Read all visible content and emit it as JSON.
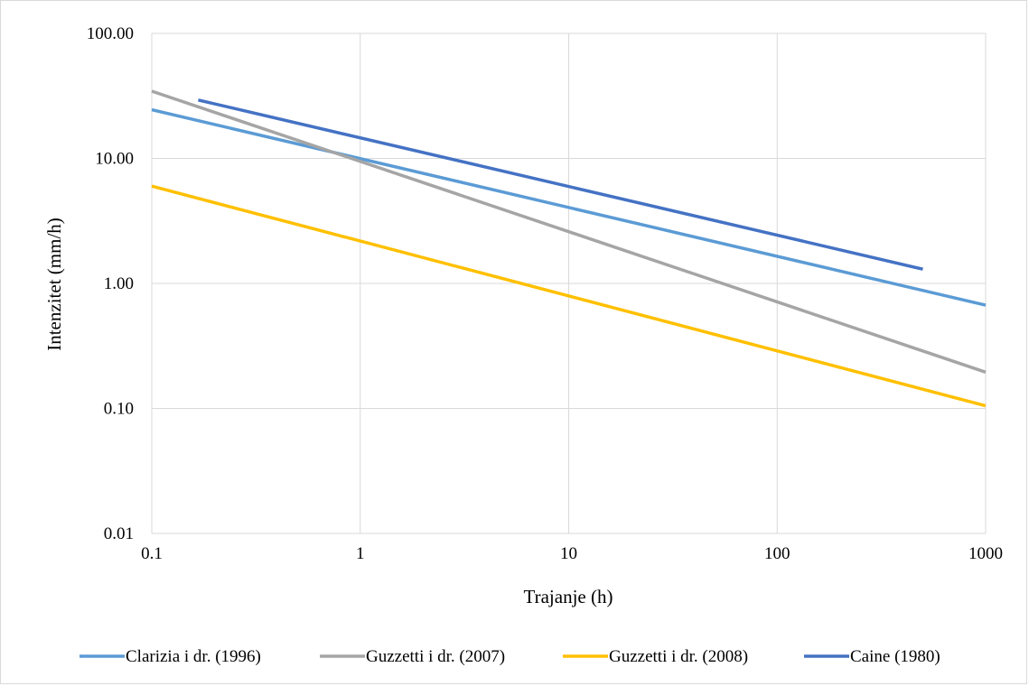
{
  "chart_data": {
    "type": "line",
    "title": "",
    "xlabel": "Trajanje (h)",
    "ylabel": "Intenzitet (mm/h)",
    "x_scale": "log",
    "y_scale": "log",
    "xlim": [
      0.1,
      1000
    ],
    "ylim": [
      0.01,
      100
    ],
    "x_ticks": [
      "0.1",
      "1",
      "10",
      "100",
      "1000"
    ],
    "y_ticks": [
      "100.00",
      "10.00",
      "1.00",
      "0.10",
      "0.01"
    ],
    "grid": true,
    "legend_position": "bottom",
    "series": [
      {
        "name": "Clarizia i dr. (1996)",
        "color": "#5b9bd5",
        "x": [
          0.1,
          1000
        ],
        "y": [
          24.5,
          0.67
        ]
      },
      {
        "name": "Guzzetti i dr. (2007)",
        "color": "#a5a5a5",
        "x": [
          0.1,
          1000
        ],
        "y": [
          34.5,
          0.195
        ]
      },
      {
        "name": "Guzzetti i dr. (2008)",
        "color": "#ffc000",
        "x": [
          0.1,
          1000
        ],
        "y": [
          6.0,
          0.105
        ]
      },
      {
        "name": "Caine (1980)",
        "color": "#4472c4",
        "x": [
          0.167,
          500
        ],
        "y": [
          29.3,
          1.3
        ]
      }
    ]
  }
}
